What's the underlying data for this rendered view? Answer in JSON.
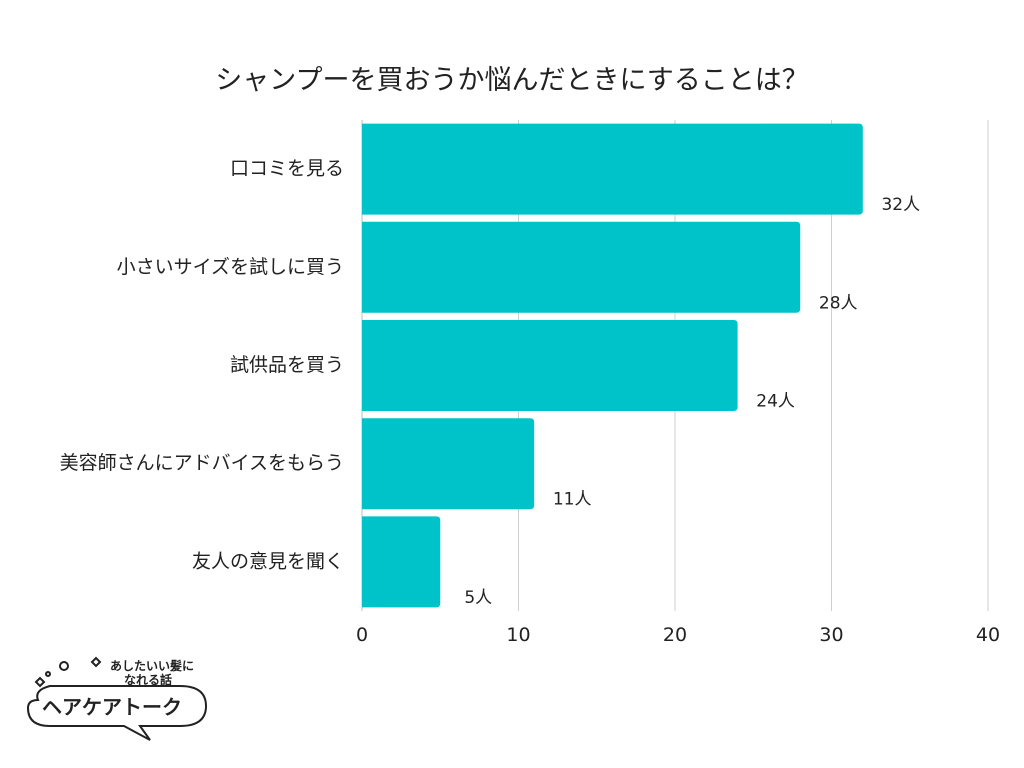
{
  "title": "シャンプーを買おうか悩んだときにすることは？",
  "chart_data": {
    "type": "bar",
    "orientation": "horizontal",
    "title": "シャンプーを買おうか悩んだときにすることは？",
    "categories": [
      "口コミを見る",
      "小さいサイズを試しに買う",
      "試供品を買う",
      "美容師さんにアドバイスをもらう",
      "友人の意見を聞く"
    ],
    "values": [
      32,
      28,
      24,
      11,
      5
    ],
    "value_labels": [
      "32人",
      "28人",
      "24人",
      "11人",
      "5人"
    ],
    "xlim": [
      0,
      40
    ],
    "xticks": [
      "0",
      "10",
      "20",
      "30",
      "40"
    ],
    "grid": true,
    "legend": "none",
    "bar_color": "#00c2c9"
  },
  "logo": {
    "tagline_1": "あしたいい髪に",
    "tagline_2": "なれる話",
    "name": "ヘアケアトーク"
  }
}
